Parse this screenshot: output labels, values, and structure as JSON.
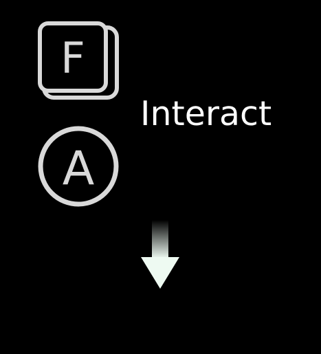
{
  "prompt": {
    "action_label": "Interact",
    "keyboard_key": "F",
    "gamepad_button": "A"
  },
  "icons": {
    "keyboard": "keyboard-key-icon",
    "gamepad": "gamepad-button-icon",
    "direction": "arrow-down-icon"
  },
  "colors": {
    "background": "#000000",
    "icon": "#d9d9d9",
    "label": "#ffffff",
    "arrow": "#eefaf2"
  }
}
